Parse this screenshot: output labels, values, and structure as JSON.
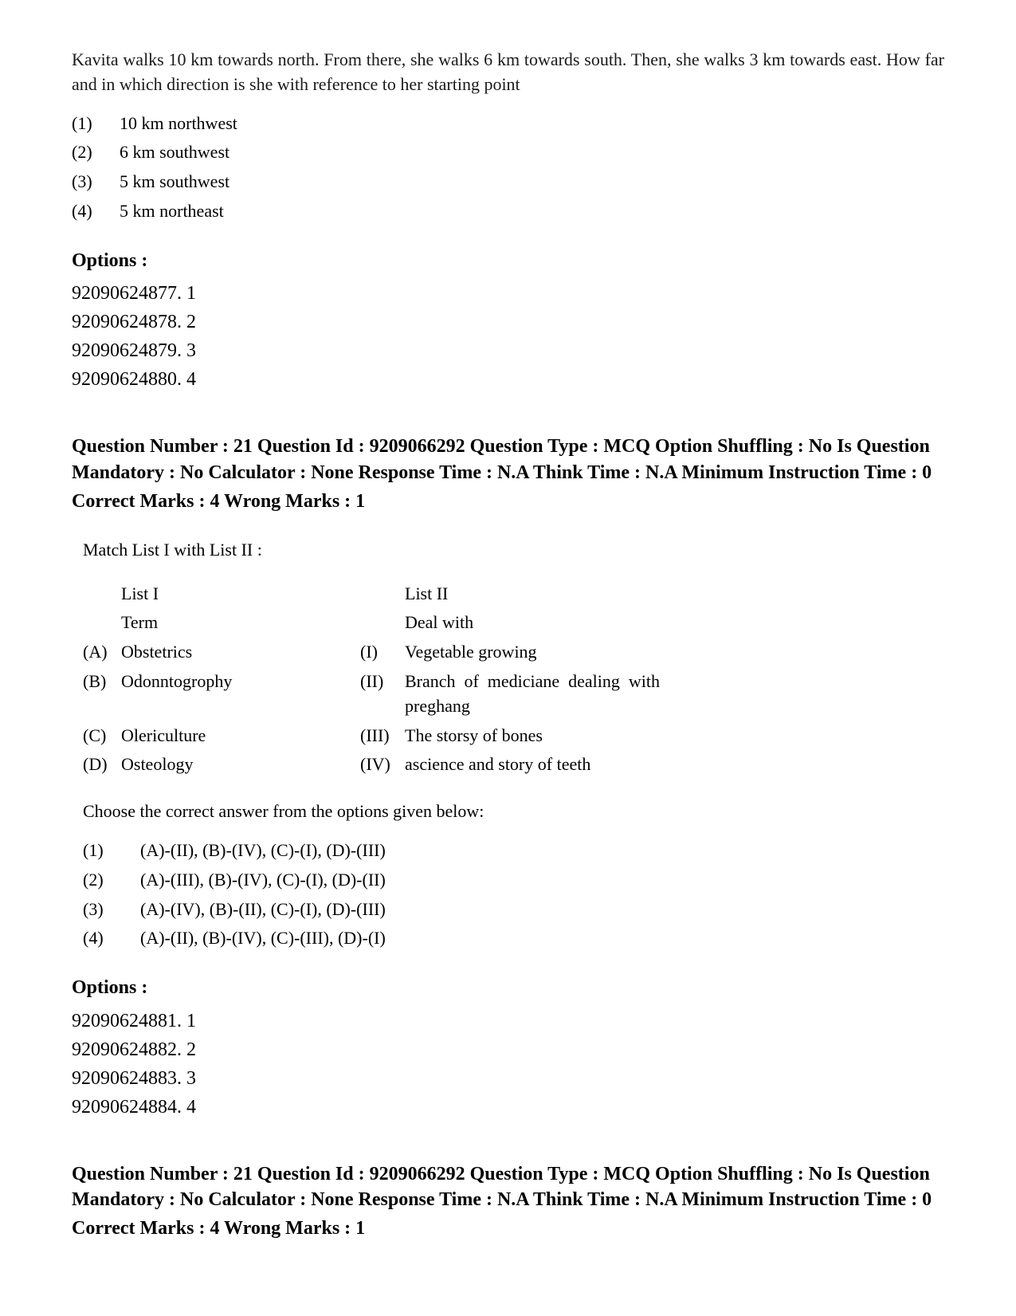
{
  "q1": {
    "text": "Kavita walks 10 km towards north. From there, she walks 6 km towards south. Then, she walks 3 km towards east. How far and in which direction is she with reference to her starting point",
    "choices": [
      {
        "num": "(1)",
        "label": "10 km northwest"
      },
      {
        "num": "(2)",
        "label": "6 km southwest"
      },
      {
        "num": "(3)",
        "label": "5 km southwest"
      },
      {
        "num": "(4)",
        "label": "5 km northeast"
      }
    ],
    "optionsHeader": "Options :",
    "options": [
      "92090624877. 1",
      "92090624878. 2",
      "92090624879. 3",
      "92090624880. 4"
    ]
  },
  "q2": {
    "meta": "Question Number : 21 Question Id : 9209066292 Question Type : MCQ Option Shuffling : No Is Question Mandatory : No Calculator : None Response Time : N.A Think Time : N.A Minimum Instruction Time : 0",
    "marks": "Correct Marks : 4 Wrong Marks : 1",
    "instruction": "Match List I with List II :",
    "listHeader": {
      "aTitle": "List I",
      "aSub": "Term",
      "bTitle": "List II",
      "bSub": "Deal with"
    },
    "rows": [
      {
        "aLetter": "(A)",
        "aText": "Obstetrics",
        "bLetter": "(I)",
        "bText": "Vegetable growing"
      },
      {
        "aLetter": "(B)",
        "aText": "Odonntogrophy",
        "bLetter": "(II)",
        "bText": "Branch of mediciane dealing with preghang"
      },
      {
        "aLetter": "(C)",
        "aText": "Olericulture",
        "bLetter": "(III)",
        "bText": "The storsy of bones"
      },
      {
        "aLetter": "(D)",
        "aText": "Osteology",
        "bLetter": "(IV)",
        "bText": "ascience and story of teeth"
      }
    ],
    "choose": "Choose the correct answer from the options given below:",
    "answers": [
      {
        "num": "(1)",
        "text": "(A)-(II), (B)-(IV), (C)-(I), (D)-(III)"
      },
      {
        "num": "(2)",
        "text": "(A)-(III), (B)-(IV), (C)-(I), (D)-(II)"
      },
      {
        "num": "(3)",
        "text": "(A)-(IV), (B)-(II), (C)-(I), (D)-(III)"
      },
      {
        "num": "(4)",
        "text": "(A)-(II), (B)-(IV), (C)-(III), (D)-(I)"
      }
    ],
    "optionsHeader": "Options :",
    "options": [
      "92090624881. 1",
      "92090624882. 2",
      "92090624883. 3",
      "92090624884. 4"
    ]
  },
  "q3": {
    "meta": "Question Number : 21 Question Id : 9209066292 Question Type : MCQ Option Shuffling : No Is Question Mandatory : No Calculator : None Response Time : N.A Think Time : N.A Minimum Instruction Time : 0",
    "marks": "Correct Marks : 4 Wrong Marks : 1"
  }
}
